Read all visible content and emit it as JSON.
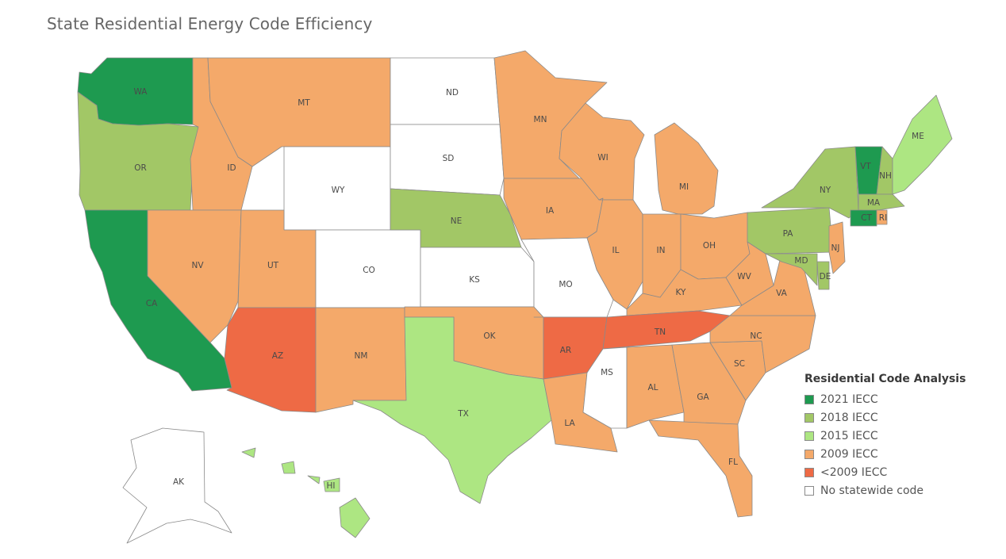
{
  "title": "State Residential Energy Code Efficiency",
  "legend": {
    "title": "Residential Code Analysis",
    "items": [
      {
        "key": "2021",
        "label": "2021 IECC",
        "color": "#1e9a50"
      },
      {
        "key": "2018",
        "label": "2018 IECC",
        "color": "#a2c766"
      },
      {
        "key": "2015",
        "label": "2015 IECC",
        "color": "#ade682"
      },
      {
        "key": "2009",
        "label": "2009 IECC",
        "color": "#f4a96a"
      },
      {
        "key": "pre2009",
        "label": "<2009 IECC",
        "color": "#ee6a45"
      },
      {
        "key": "none",
        "label": "No statewide code",
        "color": "#ffffff"
      }
    ]
  },
  "states": [
    {
      "abbr": "WA",
      "code": "2021"
    },
    {
      "abbr": "OR",
      "code": "2018"
    },
    {
      "abbr": "CA",
      "code": "2021"
    },
    {
      "abbr": "ID",
      "code": "2009"
    },
    {
      "abbr": "MT",
      "code": "2009"
    },
    {
      "abbr": "WY",
      "code": "none"
    },
    {
      "abbr": "NV",
      "code": "2009"
    },
    {
      "abbr": "UT",
      "code": "2009"
    },
    {
      "abbr": "CO",
      "code": "none"
    },
    {
      "abbr": "AZ",
      "code": "pre2009"
    },
    {
      "abbr": "NM",
      "code": "2009"
    },
    {
      "abbr": "ND",
      "code": "none"
    },
    {
      "abbr": "SD",
      "code": "none"
    },
    {
      "abbr": "NE",
      "code": "2018"
    },
    {
      "abbr": "KS",
      "code": "none"
    },
    {
      "abbr": "OK",
      "code": "2009"
    },
    {
      "abbr": "TX",
      "code": "2015"
    },
    {
      "abbr": "MN",
      "code": "2009"
    },
    {
      "abbr": "IA",
      "code": "2009"
    },
    {
      "abbr": "MO",
      "code": "none"
    },
    {
      "abbr": "AR",
      "code": "pre2009"
    },
    {
      "abbr": "LA",
      "code": "2009"
    },
    {
      "abbr": "WI",
      "code": "2009"
    },
    {
      "abbr": "IL",
      "code": "2009"
    },
    {
      "abbr": "MI",
      "code": "2009"
    },
    {
      "abbr": "IN",
      "code": "2009"
    },
    {
      "abbr": "OH",
      "code": "2009"
    },
    {
      "abbr": "KY",
      "code": "2009"
    },
    {
      "abbr": "TN",
      "code": "pre2009"
    },
    {
      "abbr": "MS",
      "code": "none"
    },
    {
      "abbr": "AL",
      "code": "2009"
    },
    {
      "abbr": "GA",
      "code": "2009"
    },
    {
      "abbr": "FL",
      "code": "2009"
    },
    {
      "abbr": "SC",
      "code": "2009"
    },
    {
      "abbr": "NC",
      "code": "2009"
    },
    {
      "abbr": "VA",
      "code": "2009"
    },
    {
      "abbr": "WV",
      "code": "2009"
    },
    {
      "abbr": "PA",
      "code": "2018"
    },
    {
      "abbr": "NY",
      "code": "2018"
    },
    {
      "abbr": "NJ",
      "code": "2009"
    },
    {
      "abbr": "DE",
      "code": "2018"
    },
    {
      "abbr": "MD",
      "code": "2018"
    },
    {
      "abbr": "VT",
      "code": "2021"
    },
    {
      "abbr": "NH",
      "code": "2018"
    },
    {
      "abbr": "ME",
      "code": "2015"
    },
    {
      "abbr": "MA",
      "code": "2018"
    },
    {
      "abbr": "CT",
      "code": "2021"
    },
    {
      "abbr": "RI",
      "code": "2009"
    },
    {
      "abbr": "AK",
      "code": "none"
    },
    {
      "abbr": "HI",
      "code": "2015"
    }
  ]
}
